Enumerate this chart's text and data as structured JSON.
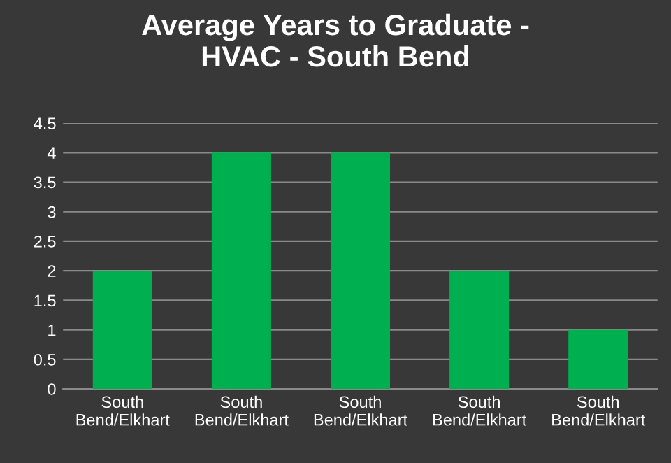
{
  "chart_data": {
    "type": "bar",
    "title": "Average Years to Graduate -\nHVAC - South Bend",
    "categories": [
      "South\nBend/Elkhart",
      "South\nBend/Elkhart",
      "South\nBend/Elkhart",
      "South\nBend/Elkhart",
      "South\nBend/Elkhart"
    ],
    "values": [
      2,
      4,
      4,
      2,
      1
    ],
    "color": "#00b050",
    "ylim": [
      0,
      4.5
    ],
    "yticks": [
      0,
      0.5,
      1,
      1.5,
      2,
      2.5,
      3,
      3.5,
      4,
      4.5
    ],
    "grid": "y"
  }
}
